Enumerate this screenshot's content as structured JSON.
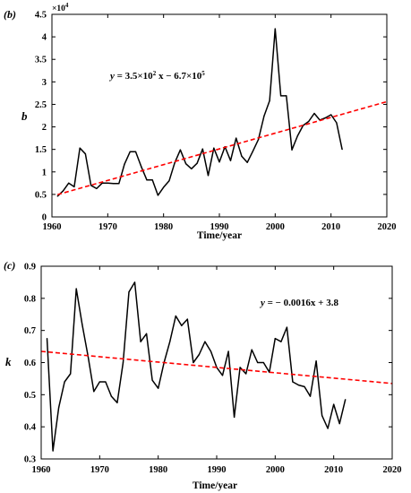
{
  "chart_data": [
    {
      "type": "line",
      "panel_label": "(b)",
      "xlabel": "Time/year",
      "ylabel": "b",
      "y_exponent_label": "×10",
      "y_exponent_power": "4",
      "xlim": [
        1960,
        2020
      ],
      "ylim": [
        0,
        45000
      ],
      "xticks": [
        1960,
        1970,
        1980,
        1990,
        2000,
        2010,
        2020
      ],
      "yticks": [
        0,
        5000,
        10000,
        15000,
        20000,
        25000,
        30000,
        35000,
        40000,
        45000
      ],
      "ytick_labels": [
        "0",
        "0.5",
        "1",
        "1.5",
        "2",
        "2.5",
        "3",
        "3.5",
        "4",
        "4.5"
      ],
      "grid": false,
      "series": [
        {
          "color": "#000000",
          "style": "solid",
          "x": [
            1961,
            1962,
            1963,
            1964,
            1965,
            1966,
            1967,
            1968,
            1969,
            1970,
            1971,
            1972,
            1973,
            1974,
            1975,
            1976,
            1977,
            1978,
            1979,
            1980,
            1981,
            1982,
            1983,
            1984,
            1985,
            1986,
            1987,
            1988,
            1989,
            1990,
            1991,
            1992,
            1993,
            1994,
            1995,
            1996,
            1997,
            1998,
            1999,
            2000,
            2001,
            2002,
            2003,
            2004,
            2005,
            2006,
            2007,
            2008,
            2009,
            2010,
            2011,
            2012
          ],
          "y": [
            4600,
            5800,
            7500,
            6700,
            15300,
            14000,
            7000,
            6300,
            7500,
            7500,
            7400,
            7400,
            11700,
            14500,
            14500,
            11200,
            8200,
            8200,
            4800,
            6600,
            8000,
            12000,
            14900,
            11800,
            10700,
            11900,
            15100,
            9200,
            15300,
            12200,
            15600,
            12500,
            17500,
            13500,
            12100,
            14600,
            17200,
            22400,
            25800,
            41800,
            26900,
            26900,
            14900,
            18000,
            20300,
            21200,
            23000,
            21500,
            22000,
            22700,
            20900,
            15000
          ]
        },
        {
          "type": "trend",
          "color": "#ff0000",
          "style": "dashed",
          "x": [
            1961,
            2020
          ],
          "y": [
            4950,
            25600
          ]
        }
      ],
      "annotations": [
        {
          "text": "y = 3.5×10",
          "sup1": "2",
          "text2": " x − 6.7×10",
          "sup2": "5"
        }
      ]
    },
    {
      "type": "line",
      "panel_label": "(c)",
      "xlabel": "Time/year",
      "ylabel": "k",
      "xlim": [
        1960,
        2020
      ],
      "ylim": [
        0.3,
        0.9
      ],
      "xticks": [
        1960,
        1970,
        1980,
        1990,
        2000,
        2010,
        2020
      ],
      "yticks": [
        0.3,
        0.4,
        0.5,
        0.6,
        0.7,
        0.8,
        0.9
      ],
      "ytick_labels": [
        "0.3",
        "0.4",
        "0.5",
        "0.6",
        "0.7",
        "0.8",
        "0.9"
      ],
      "grid": false,
      "series": [
        {
          "color": "#000000",
          "style": "solid",
          "x": [
            1961,
            1962,
            1963,
            1964,
            1965,
            1966,
            1967,
            1968,
            1969,
            1970,
            1971,
            1972,
            1973,
            1974,
            1975,
            1976,
            1977,
            1978,
            1979,
            1980,
            1981,
            1982,
            1983,
            1984,
            1985,
            1986,
            1987,
            1988,
            1989,
            1990,
            1991,
            1992,
            1993,
            1994,
            1995,
            1996,
            1997,
            1998,
            1999,
            2000,
            2001,
            2002,
            2003,
            2004,
            2005,
            2006,
            2007,
            2008,
            2009,
            2010,
            2011,
            2012
          ],
          "y": [
            0.675,
            0.325,
            0.46,
            0.54,
            0.565,
            0.83,
            0.72,
            0.62,
            0.51,
            0.54,
            0.54,
            0.495,
            0.475,
            0.6,
            0.82,
            0.85,
            0.665,
            0.69,
            0.545,
            0.52,
            0.6,
            0.665,
            0.745,
            0.715,
            0.735,
            0.6,
            0.625,
            0.665,
            0.635,
            0.585,
            0.56,
            0.635,
            0.43,
            0.585,
            0.565,
            0.64,
            0.6,
            0.6,
            0.57,
            0.675,
            0.665,
            0.71,
            0.54,
            0.53,
            0.525,
            0.495,
            0.605,
            0.435,
            0.395,
            0.47,
            0.41,
            0.485
          ]
        },
        {
          "type": "trend",
          "color": "#ff0000",
          "style": "dashed",
          "x": [
            1960,
            2020
          ],
          "y": [
            0.635,
            0.535
          ]
        }
      ],
      "annotations": [
        {
          "text": "y = − 0.0016x + 3.8"
        }
      ]
    }
  ]
}
